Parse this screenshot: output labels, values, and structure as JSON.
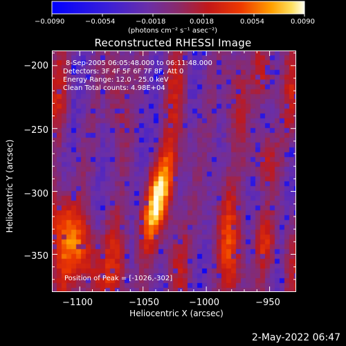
{
  "colorbar": {
    "ticks": [
      "−0.0090",
      "−0.0054",
      "−0.0018",
      "0.0018",
      "0.0054",
      "0.0090"
    ],
    "min": -0.009,
    "max": 0.009,
    "unit_label": "(photons cm⁻² s⁻¹ asec⁻²)"
  },
  "title": "Reconstructed RHESSI Image",
  "info": {
    "time_range": "8-Sep-2005 06:05:48.000 to 06:11:48.000",
    "detectors": "Detectors: 3F 4F 5F 6F 7F 8F, Att 0",
    "energy": "Energy Range: 12.0 - 25.0 keV",
    "clean_counts": "Clean     Total counts: 4.98E+04",
    "peak": "Position of Peak = [-1026,-302]"
  },
  "axes": {
    "xlabel": "Heliocentric X (arcsec)",
    "ylabel": "Heliocentric Y (arcsec)",
    "xticks": [
      "−1100",
      "−1050",
      "−1000",
      "−950"
    ],
    "yticks": [
      "−200",
      "−250",
      "−300",
      "−350"
    ],
    "xlim": [
      -1122,
      -929
    ],
    "ylim": [
      -380,
      -188
    ]
  },
  "timestamp": "2-May-2022 06:47",
  "colors": {
    "background": "#000000",
    "foreground": "#ffffff"
  }
}
